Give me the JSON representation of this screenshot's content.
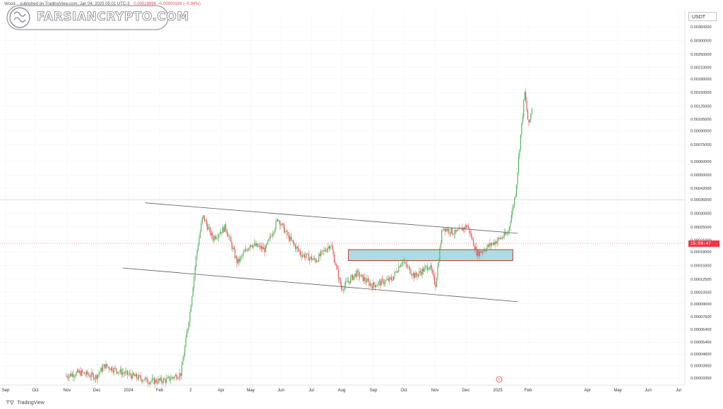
{
  "header": {
    "publisher_text": "Wood... published on TradingView.com, Jan 04, 2025 05:01 UTC-3",
    "price_change": "0.00019996  −0.00000189 (−0.94%)"
  },
  "watermark": {
    "text": "FARSIANCRYPTO.COM"
  },
  "currency_label": "USDT",
  "last_price_tag": "15:58:47",
  "footer": {
    "brand": "TradingView"
  },
  "event_marker": "F",
  "colors": {
    "up": "#4caf50",
    "down": "#e0504e",
    "trendline": "#555555",
    "zone_fill": "#a8dfe6",
    "zone_border": "#c0392b",
    "background": "#ffffff",
    "plot_bg": "#ffffff",
    "grid": "#eef0f3"
  },
  "chart_data": {
    "type": "candlestick",
    "title": "",
    "y_scale": "log",
    "y_ticks": [
      "0.00360000",
      "0.00300000",
      "0.00250000",
      "0.00210000",
      "0.00180000",
      "0.00150000",
      "0.00125000",
      "0.00105000",
      "0.00090000",
      "0.00075000",
      "0.00060000",
      "0.00050000",
      "0.00042000",
      "0.00036000",
      "0.00030000",
      "0.00025000",
      "0.00021000",
      "0.00018000",
      "0.00015000",
      "0.00012500",
      "0.00010500",
      "0.00009000",
      "0.00007600",
      "0.00006400",
      "0.00005400",
      "0.00004600",
      "0.00003950",
      "0.00003350"
    ],
    "x_ticks": [
      "Sep",
      "Oct",
      "Nov",
      "Dec",
      "2024",
      "Feb",
      "2",
      "Apr",
      "May",
      "Jun",
      "Jul",
      "Aug",
      "Sep",
      "Oct",
      "Nov",
      "Dec",
      "2025",
      "Feb",
      "Apr",
      "May",
      "Jun",
      "Jul"
    ],
    "price_path": [
      {
        "t": "2023-11-01",
        "p": 3.45e-05
      },
      {
        "t": "2023-11-15",
        "p": 3.6e-05
      },
      {
        "t": "2023-12-01",
        "p": 3.4e-05
      },
      {
        "t": "2023-12-10",
        "p": 3.95e-05
      },
      {
        "t": "2023-12-25",
        "p": 3.65e-05
      },
      {
        "t": "2024-01-10",
        "p": 3.4e-05
      },
      {
        "t": "2024-01-25",
        "p": 3.2e-05
      },
      {
        "t": "2024-02-10",
        "p": 3.25e-05
      },
      {
        "t": "2024-02-25",
        "p": 3.55e-05
      },
      {
        "t": "2024-03-05",
        "p": 8e-05
      },
      {
        "t": "2024-03-12",
        "p": 0.00018
      },
      {
        "t": "2024-03-18",
        "p": 0.00029
      },
      {
        "t": "2024-03-28",
        "p": 0.000215
      },
      {
        "t": "2024-04-10",
        "p": 0.00025
      },
      {
        "t": "2024-04-22",
        "p": 0.000155
      },
      {
        "t": "2024-05-05",
        "p": 0.0002
      },
      {
        "t": "2024-05-20",
        "p": 0.000185
      },
      {
        "t": "2024-06-02",
        "p": 0.00028
      },
      {
        "t": "2024-06-12",
        "p": 0.00022
      },
      {
        "t": "2024-06-25",
        "p": 0.000175
      },
      {
        "t": "2024-07-10",
        "p": 0.00016
      },
      {
        "t": "2024-07-25",
        "p": 0.0002
      },
      {
        "t": "2024-08-05",
        "p": 0.00011
      },
      {
        "t": "2024-08-20",
        "p": 0.000135
      },
      {
        "t": "2024-09-05",
        "p": 0.000115
      },
      {
        "t": "2024-09-25",
        "p": 0.000125
      },
      {
        "t": "2024-10-05",
        "p": 0.00016
      },
      {
        "t": "2024-10-18",
        "p": 0.00013
      },
      {
        "t": "2024-11-02",
        "p": 0.00015
      },
      {
        "t": "2024-11-08",
        "p": 0.000115
      },
      {
        "t": "2024-11-15",
        "p": 0.00025
      },
      {
        "t": "2024-11-28",
        "p": 0.00023
      },
      {
        "t": "2024-12-10",
        "p": 0.000255
      },
      {
        "t": "2024-12-20",
        "p": 0.000175
      },
      {
        "t": "2025-01-04",
        "p": 0.0002
      },
      {
        "t": "2025-01-20",
        "p": 0.00023
      },
      {
        "t": "2025-01-28",
        "p": 0.0004
      },
      {
        "t": "2025-02-01",
        "p": 0.00075
      },
      {
        "t": "2025-02-06",
        "p": 0.0015
      },
      {
        "t": "2025-02-10",
        "p": 0.00095
      },
      {
        "t": "2025-02-14",
        "p": 0.0013
      }
    ],
    "trendlines": [
      {
        "from": {
          "t": "2024-01-20",
          "p": 0.000345
        },
        "to": {
          "t": "2025-01-30",
          "p": 0.00023
        }
      },
      {
        "from": {
          "t": "2023-12-28",
          "p": 0.000145
        },
        "to": {
          "t": "2025-01-30",
          "p": 9.25e-05
        }
      }
    ],
    "zone": {
      "t_start": "2024-08-12",
      "t_end": "2025-01-25",
      "p_low": 0.00016,
      "p_high": 0.000185
    }
  }
}
